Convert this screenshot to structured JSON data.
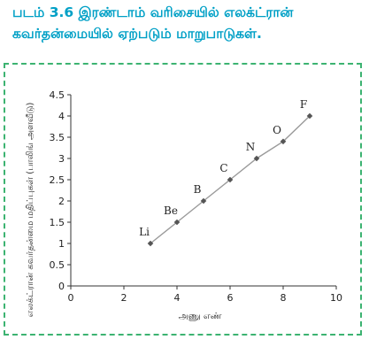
{
  "caption": {
    "line1": "படம் 3.6 இரண்டாம் வரிசையில் எலக்ட்ரான்",
    "line2": "கவர்தன்மையில்  ஏற்படும் மாறுபாடுகள்."
  },
  "colors": {
    "caption": "#00a0c6",
    "frame": "#3cb371",
    "line": "#9a9a9a",
    "marker": "#555555"
  },
  "chart_data": {
    "type": "line",
    "xlabel": "அணு எண்",
    "ylabel": "எலக்ட்ரான் கவர்தன்மை மதிப்புகள் (பாலிங் அளவீடு)",
    "xlim": [
      0,
      10
    ],
    "ylim": [
      0,
      4.5
    ],
    "xticks": [
      "0",
      "2",
      "4",
      "6",
      "8",
      "10"
    ],
    "yticks": [
      "0",
      "0.5",
      "1",
      "1.5",
      "2",
      "2.5",
      "3",
      "3.5",
      "4",
      "4.5"
    ],
    "grid": false,
    "points": [
      {
        "label": "Li",
        "x": 3,
        "y": 1.0
      },
      {
        "label": "Be",
        "x": 4,
        "y": 1.5
      },
      {
        "label": "B",
        "x": 5,
        "y": 2.0
      },
      {
        "label": "C",
        "x": 6,
        "y": 2.5
      },
      {
        "label": "N",
        "x": 7,
        "y": 3.0
      },
      {
        "label": "O",
        "x": 8,
        "y": 3.4
      },
      {
        "label": "F",
        "x": 9,
        "y": 4.0
      }
    ]
  }
}
